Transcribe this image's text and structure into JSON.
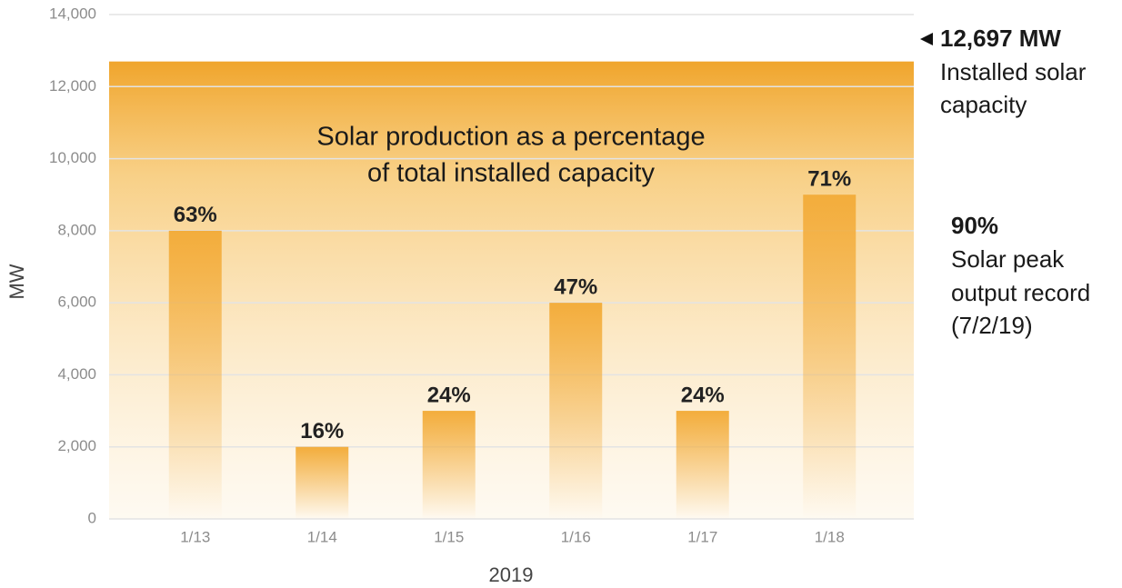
{
  "chart_data": {
    "type": "bar",
    "title_lines": [
      "Solar production as a percentage",
      "of total installed capacity"
    ],
    "x_label": "2019",
    "y_label": "MW",
    "categories": [
      "1/13",
      "1/14",
      "1/15",
      "1/16",
      "1/17",
      "1/18"
    ],
    "values": [
      8000,
      2000,
      3000,
      6000,
      3000,
      9000
    ],
    "data_labels": [
      "63%",
      "16%",
      "24%",
      "47%",
      "24%",
      "71%"
    ],
    "color": "#f3ad3c",
    "capacity": {
      "value": 12697,
      "label": "12,697 MW",
      "text_lines": [
        "Installed solar",
        "capacity"
      ]
    },
    "record": {
      "label": "90%",
      "text_lines": [
        "Solar peak",
        "output record",
        "(7/2/19)"
      ]
    },
    "ylim": [
      0,
      14000
    ],
    "yticks": [
      0,
      {
        "value": 2000,
        "label": "2,000"
      },
      {
        "value": 4000,
        "label": "4,000"
      },
      {
        "value": 6000,
        "label": "6,000"
      },
      {
        "value": 8000,
        "label": "8,000"
      },
      {
        "value": 10000,
        "label": "10,000"
      },
      {
        "value": 12000,
        "label": "12,000"
      },
      {
        "value": 14000,
        "label": "14,000"
      }
    ],
    "grid": true
  }
}
